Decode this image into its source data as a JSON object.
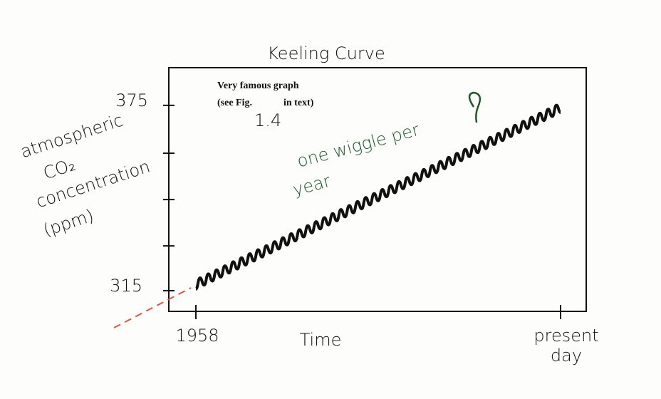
{
  "chart_data": {
    "type": "line",
    "title": "Keeling Curve",
    "ylabel_lines": [
      "atmospheric",
      "CO₂",
      "concentration",
      "(ppm)"
    ],
    "xlabel": "Time",
    "annotation_lines": [
      "Very famous graph",
      "(see Fig.",
      "in text)",
      "1.4"
    ],
    "note_lines": [
      "one wiggle per",
      "year"
    ],
    "note_color": "#1d5a2a",
    "color": "#111111",
    "categories": [
      "1958",
      null,
      null,
      null,
      null,
      null,
      null,
      null,
      null,
      null,
      null,
      null,
      null,
      null,
      null,
      null,
      null,
      null,
      null,
      null,
      null,
      null,
      null,
      null,
      null,
      null,
      null,
      null,
      null,
      null,
      null,
      null,
      null,
      null,
      null,
      null,
      null,
      null,
      null,
      null,
      null,
      null,
      null,
      null,
      null,
      null,
      null,
      null,
      null,
      null,
      null,
      null,
      null,
      null,
      null,
      null,
      null,
      null,
      null,
      null,
      null,
      null,
      null,
      null,
      null,
      null,
      null,
      null,
      null,
      null,
      null,
      null,
      null,
      null,
      null,
      null,
      null,
      null,
      null,
      null,
      null,
      null,
      null,
      null,
      null,
      null,
      null,
      null,
      "present day"
    ],
    "values": [
      315.5,
      319.15,
      316.8,
      320.45,
      318.1,
      321.75,
      319.4,
      323.05,
      320.7,
      324.35,
      322.0,
      325.65,
      323.3,
      326.95,
      324.6,
      328.25,
      325.9,
      329.55,
      327.2,
      330.85,
      328.5,
      332.15,
      329.8,
      333.45,
      331.1,
      334.75,
      332.4,
      336.05,
      333.7,
      337.35,
      335.0,
      338.65,
      336.3,
      339.95,
      337.6,
      341.25,
      338.9,
      342.55,
      340.2,
      343.85,
      341.5,
      345.15,
      342.8,
      346.45,
      344.1,
      347.75,
      345.4,
      349.05,
      346.7,
      350.35,
      348.0,
      351.65,
      349.3,
      352.95,
      350.6,
      354.25,
      351.9,
      355.55,
      353.2,
      356.85,
      354.5,
      358.15,
      355.8,
      359.45,
      357.1,
      360.75,
      358.4,
      362.05,
      359.7,
      363.35,
      361.0,
      364.65,
      362.3,
      365.95,
      363.6,
      367.25,
      364.9,
      368.55,
      366.2,
      369.85,
      367.5,
      371.15,
      368.8,
      372.45,
      370.1,
      373.75,
      371.4,
      375.05,
      372.7
    ],
    "ylim": [
      308.3,
      387.2
    ],
    "yticks": [
      315,
      375
    ],
    "minor_yticks": [
      329.5,
      344.5,
      359.5
    ]
  }
}
